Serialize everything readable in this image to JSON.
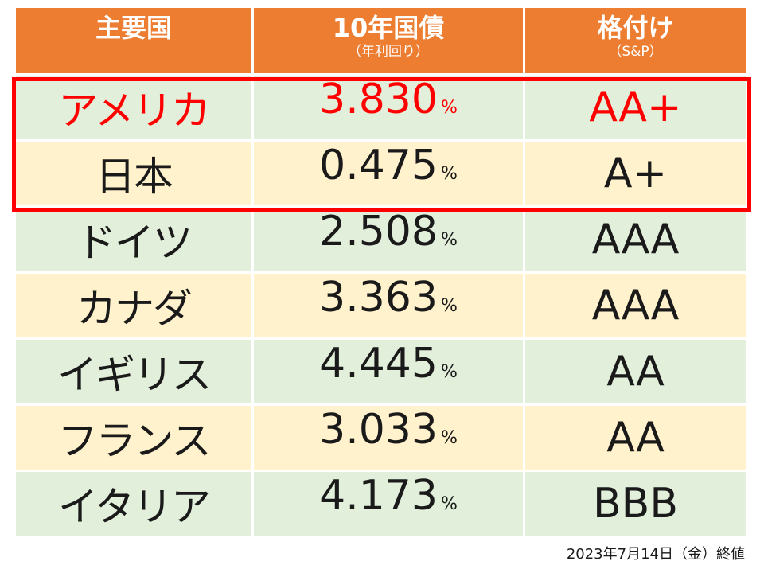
{
  "header": {
    "col1": "主要国",
    "col2": "10年国債",
    "col2_sub": "（年利回り）",
    "col3": "格付け",
    "col3_sub": "（S&P）"
  },
  "percent_sign": "%",
  "rows": [
    {
      "country": "アメリカ",
      "yield": "3.830",
      "rating": "AA+"
    },
    {
      "country": "日本",
      "yield": "0.475",
      "rating": "A+"
    },
    {
      "country": "ドイツ",
      "yield": "2.508",
      "rating": "AAA"
    },
    {
      "country": "カナダ",
      "yield": "3.363",
      "rating": "AAA"
    },
    {
      "country": "イギリス",
      "yield": "4.445",
      "rating": "AA"
    },
    {
      "country": "フランス",
      "yield": "3.033",
      "rating": "AA"
    },
    {
      "country": "イタリア",
      "yield": "4.173",
      "rating": "BBB"
    }
  ],
  "footnote": "2023年7月14日（金）終値",
  "colors": {
    "header_bg": "#ED7D31",
    "row_green": "#E2EFDA",
    "row_cream": "#FFF2CC",
    "highlight": "#FF0000"
  }
}
